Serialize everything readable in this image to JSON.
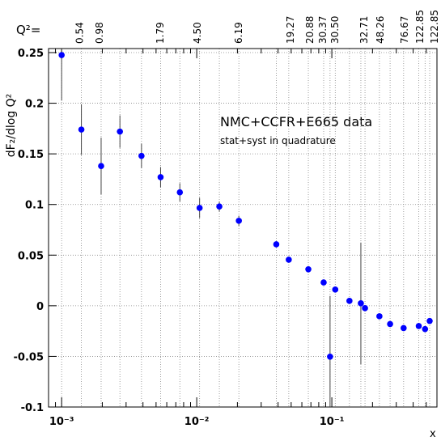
{
  "chart_data": {
    "type": "scatter",
    "title": "NMC+CCFR+E665 data",
    "subtitle": "stat+syst in quadrature",
    "y_label": "dF₂/dlog Q²",
    "x_label": "x",
    "top_axis_label": "Q²=",
    "xlog": true,
    "grid": true,
    "xlim": [
      0.0008,
      0.6
    ],
    "ylim": [
      -0.1,
      0.254
    ],
    "xticks": [
      {
        "value": 0.001,
        "label": "10⁻³"
      },
      {
        "value": 0.01,
        "label": "10⁻²"
      },
      {
        "value": 0.1,
        "label": "10⁻¹"
      }
    ],
    "yticks": [
      -0.1,
      -0.05,
      0,
      0.05,
      0.1,
      0.15,
      0.2,
      0.25
    ],
    "top_ticks": [
      {
        "value": 0.00134,
        "label": "0.54"
      },
      {
        "value": 0.00188,
        "label": "0.98"
      },
      {
        "value": 0.0053,
        "label": "1.79"
      },
      {
        "value": 0.01,
        "label": "4.50"
      },
      {
        "value": 0.0202,
        "label": "6.19"
      },
      {
        "value": 0.0489,
        "label": "19.27"
      },
      {
        "value": 0.068,
        "label": "20.88"
      },
      {
        "value": 0.0848,
        "label": "30.37"
      },
      {
        "value": 0.104,
        "label": "30.50"
      },
      {
        "value": 0.171,
        "label": "32.71"
      },
      {
        "value": 0.226,
        "label": "48.26"
      },
      {
        "value": 0.341,
        "label": "76.67"
      },
      {
        "value": 0.443,
        "label": "122.85"
      },
      {
        "value": 0.567,
        "label": "122.85"
      }
    ],
    "series": [
      {
        "color": "#0000ff",
        "x": [
          0.001,
          0.0014,
          0.00196,
          0.0027,
          0.0039,
          0.0054,
          0.0075,
          0.0105,
          0.0147,
          0.0205,
          0.0388,
          0.048,
          0.067,
          0.087,
          0.097,
          0.106,
          0.135,
          0.164,
          0.176,
          0.225,
          0.27,
          0.34,
          0.44,
          0.49,
          0.53
        ],
        "values": [
          0.2476,
          0.174,
          0.138,
          0.172,
          0.148,
          0.127,
          0.112,
          0.0966,
          0.098,
          0.0839,
          0.0607,
          0.0455,
          0.036,
          0.023,
          -0.0503,
          0.016,
          0.0048,
          0.0024,
          -0.0024,
          -0.0104,
          -0.018,
          -0.022,
          -0.02,
          -0.023,
          -0.015
        ],
        "errors": [
          0.045,
          0.025,
          0.028,
          0.016,
          0.012,
          0.01,
          0.009,
          0.01,
          0.005,
          0.005,
          0.003,
          0.003,
          0.003,
          0.003,
          0.06,
          0.003,
          0.003,
          0.06,
          0.003,
          0.003,
          0.003,
          0.003,
          0.003,
          0.003,
          0.003
        ]
      }
    ]
  }
}
